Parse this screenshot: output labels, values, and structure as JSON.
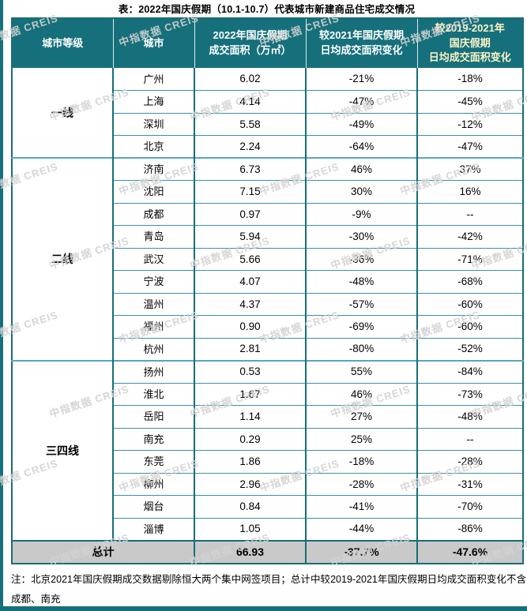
{
  "page": {
    "title": "表：2022年国庆假期（10.1-10.7）代表城市新建商品住宅成交情况",
    "note": "注：北京2021年国庆假期成交数据剔除恒大两个集中网签项目；总计中较2019-2021年国庆假期日均成交面积变化不含成都、南充",
    "watermark": "中指数据 CREIS"
  },
  "colors": {
    "header_bg": "#16707b",
    "table_border": "#186d79",
    "row_line": "#3b91a6",
    "group_line": "#57a7bf",
    "total_bg": "#c9c9c9",
    "header_text": "#ffffff",
    "header_text_highlight": "#fdf3c6",
    "accent_bar": "#16707b",
    "watermark_color": "#d2d2d2"
  },
  "chart_data": {
    "type": "table",
    "title": "表：2022年国庆假期（10.1-10.7）代表城市新建商品住宅成交情况",
    "columns": [
      "城市等级",
      "城市",
      "2022年国庆假期\n成交面积（万㎡）",
      "较2021年国庆假期\n日均成交面积变化",
      "较2019-2021年\n国庆假期\n日均成交面积变化"
    ],
    "groups": [
      {
        "tier": "一线",
        "rows": [
          [
            "广州",
            "6.02",
            "-21%",
            "-18%"
          ],
          [
            "上海",
            "4.14",
            "-47%",
            "-45%"
          ],
          [
            "深圳",
            "5.58",
            "-49%",
            "-12%"
          ],
          [
            "北京",
            "2.24",
            "-64%",
            "-47%"
          ]
        ]
      },
      {
        "tier": "二线",
        "rows": [
          [
            "济南",
            "6.73",
            "46%",
            "37%"
          ],
          [
            "沈阳",
            "7.15",
            "30%",
            "16%"
          ],
          [
            "成都",
            "0.97",
            "-9%",
            "--"
          ],
          [
            "青岛",
            "5.94",
            "-30%",
            "-42%"
          ],
          [
            "武汉",
            "5.66",
            "-36%",
            "-71%"
          ],
          [
            "宁波",
            "4.07",
            "-48%",
            "-68%"
          ],
          [
            "温州",
            "4.37",
            "-57%",
            "-60%"
          ],
          [
            "福州",
            "0.90",
            "-69%",
            "-60%"
          ],
          [
            "杭州",
            "2.81",
            "-80%",
            "-52%"
          ]
        ]
      },
      {
        "tier": "三四线",
        "rows": [
          [
            "扬州",
            "0.53",
            "55%",
            "-84%"
          ],
          [
            "淮北",
            "1.67",
            "46%",
            "-73%"
          ],
          [
            "岳阳",
            "1.14",
            "27%",
            "-48%"
          ],
          [
            "南充",
            "0.29",
            "25%",
            "--"
          ],
          [
            "东莞",
            "1.86",
            "-18%",
            "-28%"
          ],
          [
            "柳州",
            "2.96",
            "-28%",
            "-31%"
          ],
          [
            "烟台",
            "0.84",
            "-41%",
            "-70%"
          ],
          [
            "淄博",
            "1.05",
            "-44%",
            "-86%"
          ]
        ]
      }
    ],
    "total": {
      "label": "总计",
      "values": [
        "66.93",
        "-37.7%",
        "-47.6%"
      ]
    }
  }
}
